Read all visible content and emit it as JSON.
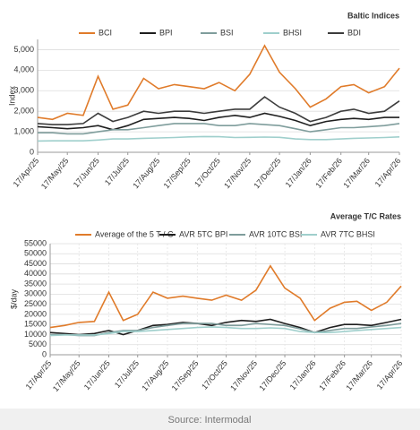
{
  "chart_data": [
    {
      "type": "line",
      "title": "Baltic Indices",
      "ylabel": "Index",
      "grid": true,
      "x": [
        "17/Apr/25",
        "02/May/25",
        "17/May/25",
        "02/Jun/25",
        "17/Jun/25",
        "02/Jul/25",
        "17/Jul/25",
        "02/Aug/25",
        "17/Aug/25",
        "02/Sep/25",
        "17/Sep/25",
        "02/Oct/25",
        "17/Oct/25",
        "02/Nov/25",
        "17/Nov/25",
        "02/Dec/25",
        "17/Dec/25",
        "02/Jan/26",
        "17/Jan/26",
        "02/Feb/26",
        "17/Feb/26",
        "02/Mar/26",
        "17/Mar/26",
        "02/Apr/26",
        "17/Apr/26"
      ],
      "xticks": [
        "17/Apr/25",
        "17/May/25",
        "17/Jun/25",
        "17/Jul/25",
        "17/Aug/25",
        "17/Sep/25",
        "17/Oct/25",
        "17/Nov/25",
        "17/Dec/25",
        "17/Jan/26",
        "17/Feb/26",
        "17/Mar/26",
        "17/Apr/26"
      ],
      "ylim": [
        0,
        5500
      ],
      "yticks": [
        0,
        {
          "value": 1000,
          "label": "1,000"
        },
        {
          "value": 2000,
          "label": "2,000"
        },
        {
          "value": 3000,
          "label": "3,000"
        },
        {
          "value": 4000,
          "label": "4,000"
        },
        {
          "value": 5000,
          "label": "5,000"
        }
      ],
      "series": [
        {
          "name": "BCI",
          "color": "#e07b2a",
          "values": [
            1700,
            1600,
            1900,
            1800,
            3700,
            2100,
            2300,
            3600,
            3100,
            3300,
            3200,
            3100,
            3400,
            3000,
            3800,
            5200,
            3900,
            3100,
            2200,
            2600,
            3200,
            3300,
            2900,
            3200,
            4100
          ]
        },
        {
          "name": "BPI",
          "color": "#1e1e1e",
          "values": [
            1250,
            1200,
            1150,
            1200,
            1300,
            1100,
            1300,
            1600,
            1650,
            1700,
            1650,
            1550,
            1700,
            1800,
            1700,
            1900,
            1750,
            1550,
            1300,
            1500,
            1600,
            1650,
            1600,
            1700,
            1700
          ]
        },
        {
          "name": "BSI",
          "color": "#7f9d9c",
          "values": [
            950,
            950,
            900,
            900,
            1000,
            1100,
            1100,
            1200,
            1300,
            1400,
            1400,
            1400,
            1300,
            1300,
            1400,
            1350,
            1300,
            1150,
            1000,
            1100,
            1200,
            1200,
            1250,
            1300,
            1400
          ]
        },
        {
          "name": "BHSI",
          "color": "#9fcfcc",
          "values": [
            550,
            560,
            560,
            560,
            600,
            650,
            650,
            680,
            700,
            720,
            750,
            770,
            760,
            720,
            730,
            740,
            730,
            650,
            620,
            620,
            650,
            680,
            700,
            720,
            750
          ]
        },
        {
          "name": "BDI",
          "color": "#3c3c3c",
          "values": [
            1400,
            1350,
            1350,
            1400,
            1900,
            1500,
            1700,
            2000,
            1900,
            2000,
            2000,
            1900,
            2000,
            2100,
            2100,
            2700,
            2200,
            1900,
            1500,
            1700,
            2000,
            2100,
            1900,
            2000,
            2500
          ]
        }
      ]
    },
    {
      "type": "line",
      "title": "Average T/C Rates",
      "ylabel": "$/day",
      "grid": true,
      "x": [
        "17/Apr/25",
        "02/May/25",
        "17/May/25",
        "02/Jun/25",
        "17/Jun/25",
        "02/Jul/25",
        "17/Jul/25",
        "02/Aug/25",
        "17/Aug/25",
        "02/Sep/25",
        "17/Sep/25",
        "02/Oct/25",
        "17/Oct/25",
        "02/Nov/25",
        "17/Nov/25",
        "02/Dec/25",
        "17/Dec/25",
        "02/Jan/26",
        "17/Jan/26",
        "02/Feb/26",
        "17/Feb/26",
        "02/Mar/26",
        "17/Mar/26",
        "02/Apr/26",
        "17/Apr/26"
      ],
      "xticks": [
        "17/Apr/25",
        "17/May/25",
        "17/Jun/25",
        "17/Jul/25",
        "17/Aug/25",
        "17/Sep/25",
        "17/Oct/25",
        "17/Nov/25",
        "17/Dec/25",
        "17/Jan/26",
        "17/Feb/26",
        "17/Mar/26",
        "17/Apr/26"
      ],
      "ylim": [
        0,
        55000
      ],
      "yticks": [
        0,
        5000,
        10000,
        15000,
        20000,
        25000,
        30000,
        35000,
        40000,
        45000,
        50000,
        55000
      ],
      "series": [
        {
          "name": "Average of the 5 T / C",
          "color": "#e07b2a",
          "values": [
            13500,
            14500,
            16000,
            16500,
            31000,
            17000,
            20000,
            31000,
            28000,
            29000,
            28000,
            27000,
            29500,
            27000,
            32000,
            44000,
            33000,
            28000,
            17000,
            23000,
            26000,
            26500,
            22000,
            26000,
            34000
          ]
        },
        {
          "name": "AVR 5TC BPI",
          "color": "#1e1e1e",
          "values": [
            11000,
            10500,
            10000,
            10500,
            12000,
            10000,
            12000,
            14500,
            15000,
            16000,
            15500,
            14500,
            16000,
            17000,
            16500,
            17500,
            15500,
            13500,
            11000,
            13500,
            15000,
            15000,
            14500,
            16000,
            17500
          ]
        },
        {
          "name": "AVR 10TC BSI",
          "color": "#7f9d9c",
          "values": [
            10000,
            10000,
            9500,
            9500,
            11000,
            12000,
            12000,
            13500,
            14500,
            15500,
            15500,
            15500,
            14500,
            14500,
            15500,
            15000,
            14500,
            12800,
            11000,
            12000,
            13000,
            13000,
            13800,
            14500,
            15500
          ]
        },
        {
          "name": "AVR 7TC BHSI",
          "color": "#9fcfcc",
          "values": [
            9500,
            9800,
            9800,
            9800,
            10500,
            11500,
            11500,
            12000,
            12500,
            13000,
            13500,
            13800,
            13500,
            13000,
            13000,
            13300,
            13000,
            11500,
            11000,
            11000,
            11500,
            12000,
            12500,
            13000,
            13500
          ]
        }
      ]
    }
  ],
  "source": "Source: Intermodal"
}
